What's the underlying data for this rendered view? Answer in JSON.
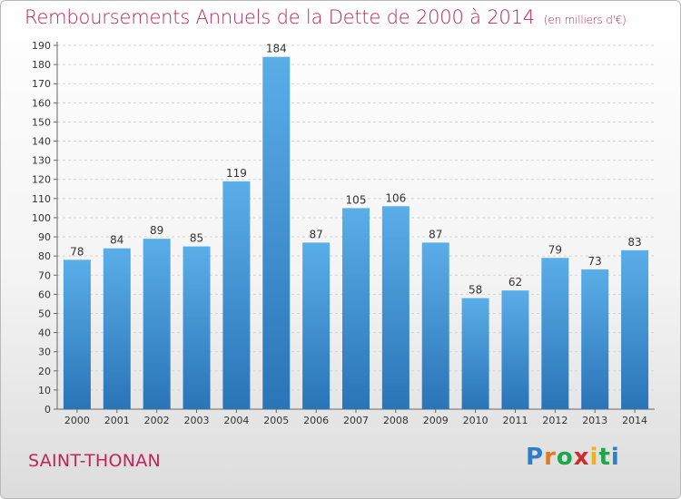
{
  "title": "Remboursements Annuels de la Dette de 2000 à 2014",
  "unit_note": "(en milliers d'€)",
  "city": "SAINT-THONAN",
  "logo": {
    "letters": [
      "P",
      "r",
      "o",
      "x",
      "i",
      "t",
      "i"
    ],
    "colors": [
      "#2f7fc8",
      "#e8761d",
      "#1ea64b",
      "#d22a2a",
      "#f0b21c",
      "#1ea64b",
      "#2f7fc8"
    ]
  },
  "colors": {
    "bar_top": "#5aaee8",
    "bar_bottom": "#2a74b8",
    "accent": "#c0245a"
  },
  "chart_data": {
    "type": "bar",
    "categories": [
      "2000",
      "2001",
      "2002",
      "2003",
      "2004",
      "2005",
      "2006",
      "2007",
      "2008",
      "2009",
      "2010",
      "2011",
      "2012",
      "2013",
      "2014"
    ],
    "values": [
      78,
      84,
      89,
      85,
      119,
      184,
      87,
      105,
      106,
      87,
      58,
      62,
      79,
      73,
      83
    ],
    "ylim": [
      0,
      190
    ],
    "yticks": [
      0,
      10,
      20,
      30,
      40,
      50,
      60,
      70,
      80,
      90,
      100,
      110,
      120,
      130,
      140,
      150,
      160,
      170,
      180,
      190
    ],
    "grid": true,
    "title": "Remboursements Annuels de la Dette de 2000 à 2014",
    "xlabel": "",
    "ylabel": ""
  }
}
